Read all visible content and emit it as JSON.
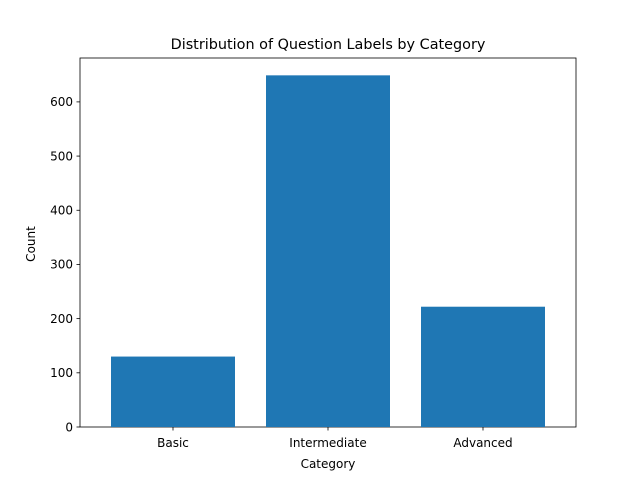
{
  "chart_data": {
    "type": "bar",
    "title": "Distribution of Question Labels by Category",
    "xlabel": "Category",
    "ylabel": "Count",
    "categories": [
      "Basic",
      "Intermediate",
      "Advanced"
    ],
    "values": [
      130,
      649,
      222
    ],
    "ylim": [
      0,
      681
    ],
    "yticks": [
      0,
      100,
      200,
      300,
      400,
      500,
      600
    ],
    "grid": false,
    "legend": "none",
    "bar_color": "#1f77b4"
  }
}
